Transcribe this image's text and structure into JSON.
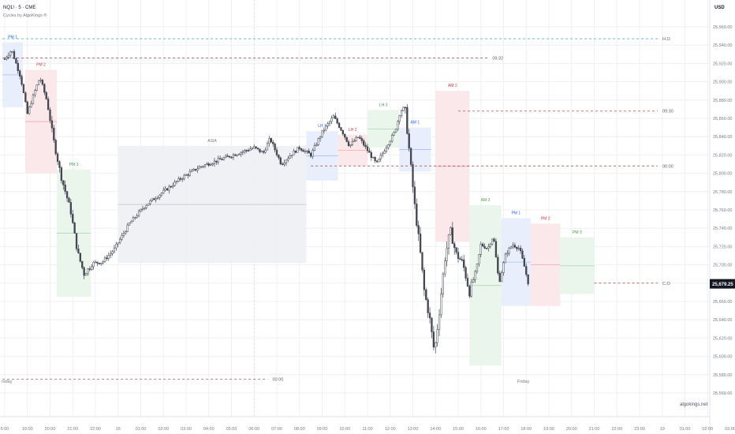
{
  "header": {
    "symbol": "NQ1! · 5 · CME",
    "indicator": "Cycles by AlgoKings ®"
  },
  "price_axis": {
    "currency": "USD",
    "current_price": "25,679.25"
  },
  "watermark": "algokings.net",
  "day_labels": [
    "rsday",
    "Friday"
  ],
  "colors": {
    "bg": "#ffffff",
    "grid": "#eef0f3",
    "axis_text": "#787b86",
    "candle": "#434651",
    "current_price_bg": "#131722",
    "london_box": "#e6ecfb",
    "london_text": "#2962ff",
    "ny_am_box": "#fbe6e8",
    "ny_am_text": "#e0323f",
    "ny_pm_box": "#e8f4e9",
    "ny_pm_text": "#43a047",
    "asia_box": "#eef0f3",
    "asia_text": "#787b86",
    "level_red": "#a85a5a",
    "level_green": "#4db6ac"
  },
  "chart_data": {
    "type": "candlestick",
    "symbol": "NQ1!",
    "interval": "5",
    "y_ticks": [
      25560,
      25580,
      25600,
      25620,
      25640,
      25660,
      25680,
      25700,
      25720,
      25740,
      25760,
      25780,
      25800,
      25820,
      25840,
      25860,
      25880,
      25900,
      25920,
      25940,
      25960
    ],
    "x_ticks": [
      "6:00",
      "19:00",
      "20:00",
      "21:00",
      "22:00",
      "16",
      "01:00",
      "02:00",
      "03:00",
      "04:00",
      "05:00",
      "06:00",
      "07:00",
      "08:00",
      "09:00",
      "10:00",
      "11:00",
      "12:00",
      "13:00",
      "14:00",
      "15:00",
      "16:00",
      "17:00",
      "18:00",
      "19:00",
      "20:00",
      "21:00",
      "22:00",
      "23:00",
      "19",
      "01:00",
      "02:00",
      "03:00"
    ],
    "price_path": [
      {
        "t": 0.0,
        "p": 25925
      },
      {
        "t": 0.3,
        "p": 25935
      },
      {
        "t": 0.7,
        "p": 25905
      },
      {
        "t": 1.0,
        "p": 25865
      },
      {
        "t": 1.3,
        "p": 25888
      },
      {
        "t": 1.55,
        "p": 25905
      },
      {
        "t": 1.85,
        "p": 25880
      },
      {
        "t": 2.2,
        "p": 25830
      },
      {
        "t": 2.5,
        "p": 25795
      },
      {
        "t": 2.9,
        "p": 25760
      },
      {
        "t": 3.2,
        "p": 25715
      },
      {
        "t": 3.5,
        "p": 25690
      },
      {
        "t": 3.9,
        "p": 25702
      },
      {
        "t": 4.3,
        "p": 25703
      },
      {
        "t": 4.8,
        "p": 25716
      },
      {
        "t": 5.5,
        "p": 25745
      },
      {
        "t": 6.2,
        "p": 25765
      },
      {
        "t": 7.0,
        "p": 25780
      },
      {
        "t": 7.8,
        "p": 25795
      },
      {
        "t": 8.6,
        "p": 25807
      },
      {
        "t": 9.5,
        "p": 25815
      },
      {
        "t": 10.4,
        "p": 25823
      },
      {
        "t": 11.0,
        "p": 25828
      },
      {
        "t": 11.4,
        "p": 25822
      },
      {
        "t": 11.7,
        "p": 25838
      },
      {
        "t": 12.2,
        "p": 25810
      },
      {
        "t": 12.6,
        "p": 25820
      },
      {
        "t": 13.0,
        "p": 25828
      },
      {
        "t": 13.5,
        "p": 25820
      },
      {
        "t": 14.0,
        "p": 25845
      },
      {
        "t": 14.5,
        "p": 25862
      },
      {
        "t": 14.9,
        "p": 25845
      },
      {
        "t": 15.2,
        "p": 25830
      },
      {
        "t": 15.6,
        "p": 25840
      },
      {
        "t": 16.0,
        "p": 25825
      },
      {
        "t": 16.4,
        "p": 25810
      },
      {
        "t": 16.8,
        "p": 25828
      },
      {
        "t": 17.2,
        "p": 25845
      },
      {
        "t": 17.45,
        "p": 25868
      },
      {
        "t": 17.65,
        "p": 25872
      },
      {
        "t": 17.9,
        "p": 25810
      },
      {
        "t": 18.1,
        "p": 25760
      },
      {
        "t": 18.3,
        "p": 25720
      },
      {
        "t": 18.5,
        "p": 25672
      },
      {
        "t": 18.75,
        "p": 25640
      },
      {
        "t": 18.95,
        "p": 25604
      },
      {
        "t": 19.15,
        "p": 25645
      },
      {
        "t": 19.4,
        "p": 25705
      },
      {
        "t": 19.65,
        "p": 25738
      },
      {
        "t": 19.9,
        "p": 25712
      },
      {
        "t": 20.2,
        "p": 25702
      },
      {
        "t": 20.5,
        "p": 25670
      },
      {
        "t": 20.8,
        "p": 25695
      },
      {
        "t": 21.0,
        "p": 25722
      },
      {
        "t": 21.3,
        "p": 25718
      },
      {
        "t": 21.55,
        "p": 25732
      },
      {
        "t": 21.8,
        "p": 25680
      },
      {
        "t": 22.1,
        "p": 25712
      },
      {
        "t": 22.4,
        "p": 25722
      },
      {
        "t": 22.7,
        "p": 25718
      },
      {
        "t": 22.9,
        "p": 25700
      },
      {
        "t": 23.1,
        "p": 25679
      }
    ],
    "sessions": [
      {
        "label": "PM 1",
        "kind": "london",
        "t0": -0.1,
        "t1": 0.8,
        "high": 25943,
        "low": 25872
      },
      {
        "label": "PM 2",
        "kind": "ny_am",
        "t0": 0.9,
        "t1": 2.3,
        "high": 25913,
        "low": 25800
      },
      {
        "label": "PM 3",
        "kind": "ny_pm",
        "t0": 2.3,
        "t1": 3.8,
        "high": 25804,
        "low": 25665
      },
      {
        "label": "ASIA",
        "kind": "asia",
        "t0": 5.0,
        "t1": 13.3,
        "high": 25830,
        "low": 25702
      },
      {
        "label": "LH 1",
        "kind": "london",
        "t0": 13.3,
        "t1": 14.7,
        "high": 25846,
        "low": 25792
      },
      {
        "label": "LH 2",
        "kind": "ny_am",
        "t0": 14.7,
        "t1": 16.0,
        "high": 25842,
        "low": 25808
      },
      {
        "label": "LH 3",
        "kind": "ny_pm",
        "t0": 16.0,
        "t1": 17.4,
        "high": 25869,
        "low": 25828
      },
      {
        "label": "AM 1",
        "kind": "london",
        "t0": 17.4,
        "t1": 18.8,
        "high": 25850,
        "low": 25802
      },
      {
        "label": "AM 2",
        "kind": "ny_am",
        "t0": 19.0,
        "t1": 20.5,
        "high": 25890,
        "low": 25725
      },
      {
        "label": "AM 3",
        "kind": "ny_pm",
        "t0": 20.5,
        "t1": 21.9,
        "high": 25765,
        "low": 25590
      },
      {
        "label": "PM 1",
        "kind": "london",
        "t0": 21.9,
        "t1": 23.2,
        "high": 25751,
        "low": 25655
      },
      {
        "label": "PM 2",
        "kind": "ny_am",
        "t0": 23.2,
        "t1": 24.5,
        "high": 25745,
        "low": 25655
      },
      {
        "label": "PM 3",
        "kind": "ny_pm",
        "t0": 24.5,
        "t1": 26.0,
        "high": 25730,
        "low": 25668
      }
    ],
    "levels": [
      {
        "label": "H.O",
        "price": 25947,
        "t0": -0.1,
        "t1": 28.8,
        "style": "green"
      },
      {
        "label": "09:32",
        "price": 25926,
        "t0": -0.1,
        "t1": 21.3,
        "style": "red"
      },
      {
        "label": "09:30",
        "price": 25868,
        "t0": 20.0,
        "t1": 28.8,
        "style": "red"
      },
      {
        "label": "00:00",
        "price": 25808,
        "t0": 13.5,
        "t1": 28.8,
        "style": "red"
      },
      {
        "label": "C.O",
        "price": 25680,
        "t0": 26.0,
        "t1": 28.8,
        "style": "red"
      },
      {
        "label": "00:00",
        "price": 25575,
        "t0": -0.1,
        "t1": 11.6,
        "style": "red"
      }
    ]
  }
}
